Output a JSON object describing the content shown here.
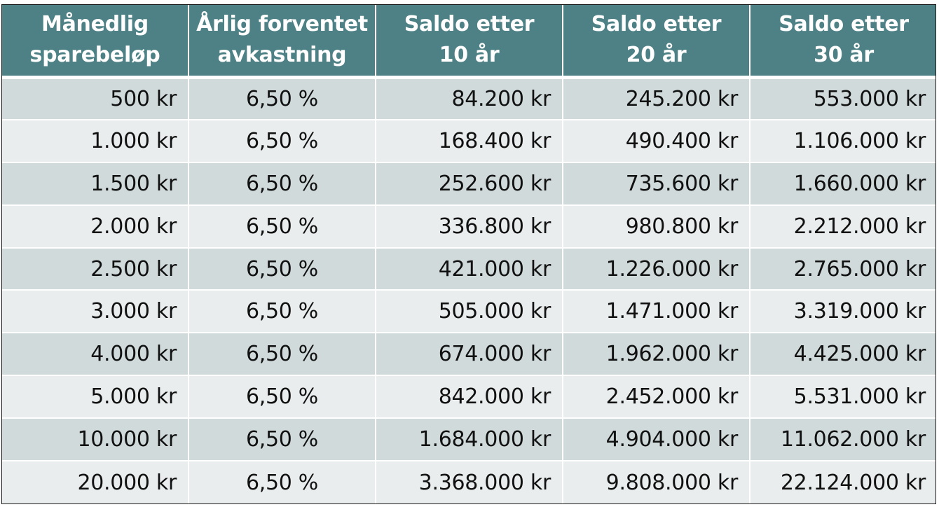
{
  "table": {
    "headers": [
      [
        "Månedlig",
        "sparebeløp"
      ],
      [
        "Årlig forventet",
        "avkastning"
      ],
      [
        "Saldo etter",
        "10 år"
      ],
      [
        "Saldo etter",
        "20 år"
      ],
      [
        "Saldo etter",
        "30 år"
      ]
    ],
    "rows": [
      [
        "500 kr",
        "6,50 %",
        "84.200 kr",
        "245.200 kr",
        "553.000 kr"
      ],
      [
        "1.000 kr",
        "6,50 %",
        "168.400 kr",
        "490.400 kr",
        "1.106.000 kr"
      ],
      [
        "1.500 kr",
        "6,50 %",
        "252.600 kr",
        "735.600 kr",
        "1.660.000 kr"
      ],
      [
        "2.000 kr",
        "6,50 %",
        "336.800 kr",
        "980.800 kr",
        "2.212.000 kr"
      ],
      [
        "2.500 kr",
        "6,50 %",
        "421.000 kr",
        "1.226.000 kr",
        "2.765.000 kr"
      ],
      [
        "3.000 kr",
        "6,50 %",
        "505.000 kr",
        "1.471.000 kr",
        "3.319.000 kr"
      ],
      [
        "4.000 kr",
        "6,50 %",
        "674.000 kr",
        "1.962.000 kr",
        "4.425.000 kr"
      ],
      [
        "5.000 kr",
        "6,50 %",
        "842.000 kr",
        "2.452.000 kr",
        "5.531.000 kr"
      ],
      [
        "10.000 kr",
        "6,50 %",
        "1.684.000 kr",
        "4.904.000 kr",
        "11.062.000 kr"
      ],
      [
        "20.000 kr",
        "6,50 %",
        "3.368.000 kr",
        "9.808.000 kr",
        "22.124.000 kr"
      ]
    ]
  },
  "colors": {
    "header_bg": "#4e8185",
    "header_text": "#ffffff",
    "row_odd_bg": "#d0dadb",
    "row_even_bg": "#e9eded",
    "text": "#111111"
  }
}
